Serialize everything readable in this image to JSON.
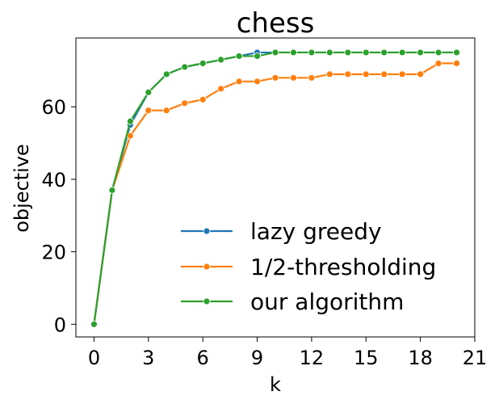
{
  "chart_data": {
    "type": "line",
    "title": "chess",
    "xlabel": "k",
    "ylabel": "objective",
    "xlim": [
      -1,
      21
    ],
    "ylim": [
      -3.5,
      79
    ],
    "xticks": [
      0,
      3,
      6,
      9,
      12,
      15,
      18,
      21
    ],
    "yticks": [
      0,
      20,
      40,
      60
    ],
    "grid": false,
    "legend_position": "lower-right",
    "x": [
      0,
      1,
      2,
      3,
      4,
      5,
      6,
      7,
      8,
      9,
      10,
      11,
      12,
      13,
      14,
      15,
      16,
      17,
      18,
      19,
      20
    ],
    "series": [
      {
        "name": "lazy greedy",
        "color": "#1f77b4",
        "values": [
          0,
          37,
          55,
          64,
          69,
          71,
          72,
          73,
          74,
          75,
          75,
          75,
          75,
          75,
          75,
          75,
          75,
          75,
          75,
          75,
          75
        ]
      },
      {
        "name": "1/2-thresholding",
        "color": "#ff7f0e",
        "values": [
          0,
          37,
          52,
          59,
          59,
          61,
          62,
          65,
          67,
          67,
          68,
          68,
          68,
          69,
          69,
          69,
          69,
          69,
          69,
          72,
          72
        ]
      },
      {
        "name": "our algorithm",
        "color": "#2ca02c",
        "values": [
          0,
          37,
          56,
          64,
          69,
          71,
          72,
          73,
          74,
          74,
          75,
          75,
          75,
          75,
          75,
          75,
          75,
          75,
          75,
          75,
          75
        ]
      }
    ]
  }
}
